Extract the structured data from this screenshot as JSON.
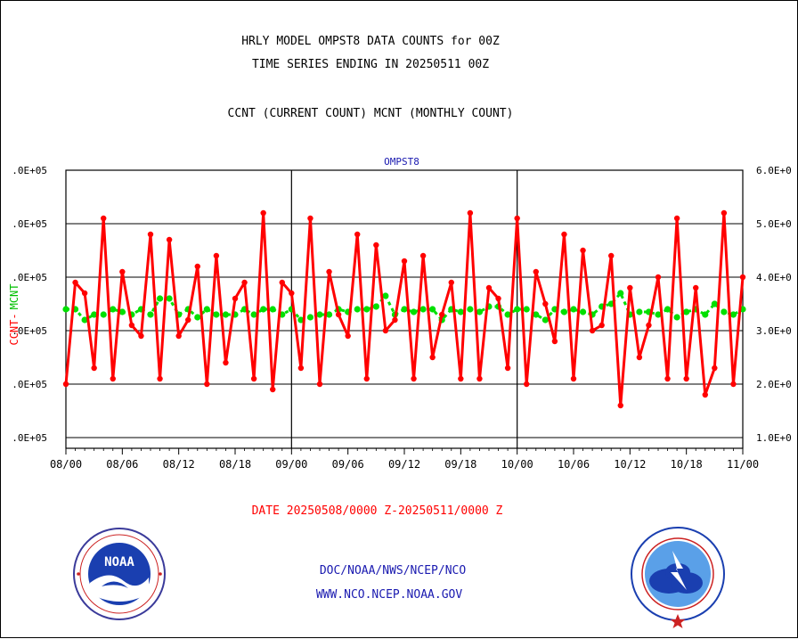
{
  "header": {
    "line1": "HRLY MODEL OMPST8 DATA COUNTS for 00Z",
    "line2": "TIME SERIES ENDING IN 20250511 00Z",
    "line3": "CCNT (CURRENT COUNT) MCNT (MONTHLY COUNT)"
  },
  "colors": {
    "ccnt": "#ff0000",
    "mcnt": "#00e000",
    "frame": "#000000",
    "panel_title": "#1a1ab0",
    "footer": "#1a1ab0"
  },
  "logos": {
    "left": {
      "icon": "noaa-logo",
      "text": "NOAA"
    },
    "right": {
      "icon": "national-weather-service-logo"
    }
  },
  "footer": {
    "date_range": "DATE 20250508/0000 Z-20250511/0000 Z",
    "org_line": "DOC/NOAA/NWS/NCEP/NCO",
    "url_line": "WWW.NCO.NCEP.NOAA.GOV"
  },
  "chart_data": {
    "type": "line",
    "title": "OMPST8",
    "ylabel_left_ccnt": "CCNT",
    "ylabel_left_sep": "-",
    "ylabel_left_mcnt": "MCNT",
    "left_tick_labels": [
      ".0E+05",
      ".0E+05",
      ".0E+05",
      ".0E+05",
      ".0E+05",
      ".0E+05"
    ],
    "right_tick_labels": [
      "1.0E+0",
      "2.0E+0",
      "3.0E+0",
      "4.0E+0",
      "5.0E+0",
      "6.0E+0"
    ],
    "ylim": [
      0.8,
      6.0
    ],
    "y_units_note": "values in units of 1E+05",
    "x_tick_labels": [
      "08/00",
      "08/06",
      "08/12",
      "08/18",
      "09/00",
      "09/06",
      "09/12",
      "09/18",
      "10/00",
      "10/06",
      "10/12",
      "10/18",
      "11/00"
    ],
    "x_range_hours": [
      0,
      72
    ],
    "grid": true,
    "series": [
      {
        "name": "CCNT",
        "values": [
          2.0,
          3.9,
          3.7,
          2.3,
          5.1,
          2.1,
          4.1,
          3.1,
          2.9,
          4.8,
          2.1,
          4.7,
          2.9,
          3.2,
          4.2,
          2.0,
          4.4,
          2.4,
          3.6,
          3.9,
          2.1,
          5.2,
          1.9,
          3.9,
          3.7,
          2.3,
          5.1,
          2.0,
          4.1,
          3.3,
          2.9,
          4.8,
          2.1,
          4.6,
          3.0,
          3.2,
          4.3,
          2.1,
          4.4,
          2.5,
          3.3,
          3.9,
          2.1,
          5.2,
          2.1,
          3.8,
          3.6,
          2.3,
          5.1,
          2.0,
          4.1,
          3.5,
          2.8,
          4.8,
          2.1,
          4.5,
          3.0,
          3.1,
          4.4,
          1.6,
          3.8,
          2.5,
          3.1,
          4.0,
          2.1,
          5.1,
          2.1,
          3.8,
          1.8,
          2.3,
          5.2,
          2.0,
          4.0
        ]
      },
      {
        "name": "MCNT",
        "values": [
          3.4,
          3.4,
          3.2,
          3.3,
          3.3,
          3.4,
          3.35,
          3.3,
          3.4,
          3.3,
          3.6,
          3.6,
          3.3,
          3.4,
          3.25,
          3.4,
          3.3,
          3.3,
          3.3,
          3.4,
          3.3,
          3.4,
          3.4,
          3.3,
          3.4,
          3.2,
          3.25,
          3.3,
          3.3,
          3.4,
          3.35,
          3.4,
          3.4,
          3.45,
          3.65,
          3.3,
          3.4,
          3.35,
          3.4,
          3.4,
          3.2,
          3.4,
          3.35,
          3.4,
          3.35,
          3.45,
          3.45,
          3.3,
          3.4,
          3.4,
          3.3,
          3.2,
          3.4,
          3.35,
          3.4,
          3.35,
          3.3,
          3.45,
          3.5,
          3.7,
          3.3,
          3.35,
          3.35,
          3.3,
          3.4,
          3.25,
          3.35,
          3.4,
          3.3,
          3.5,
          3.35,
          3.3,
          3.4
        ]
      }
    ]
  }
}
